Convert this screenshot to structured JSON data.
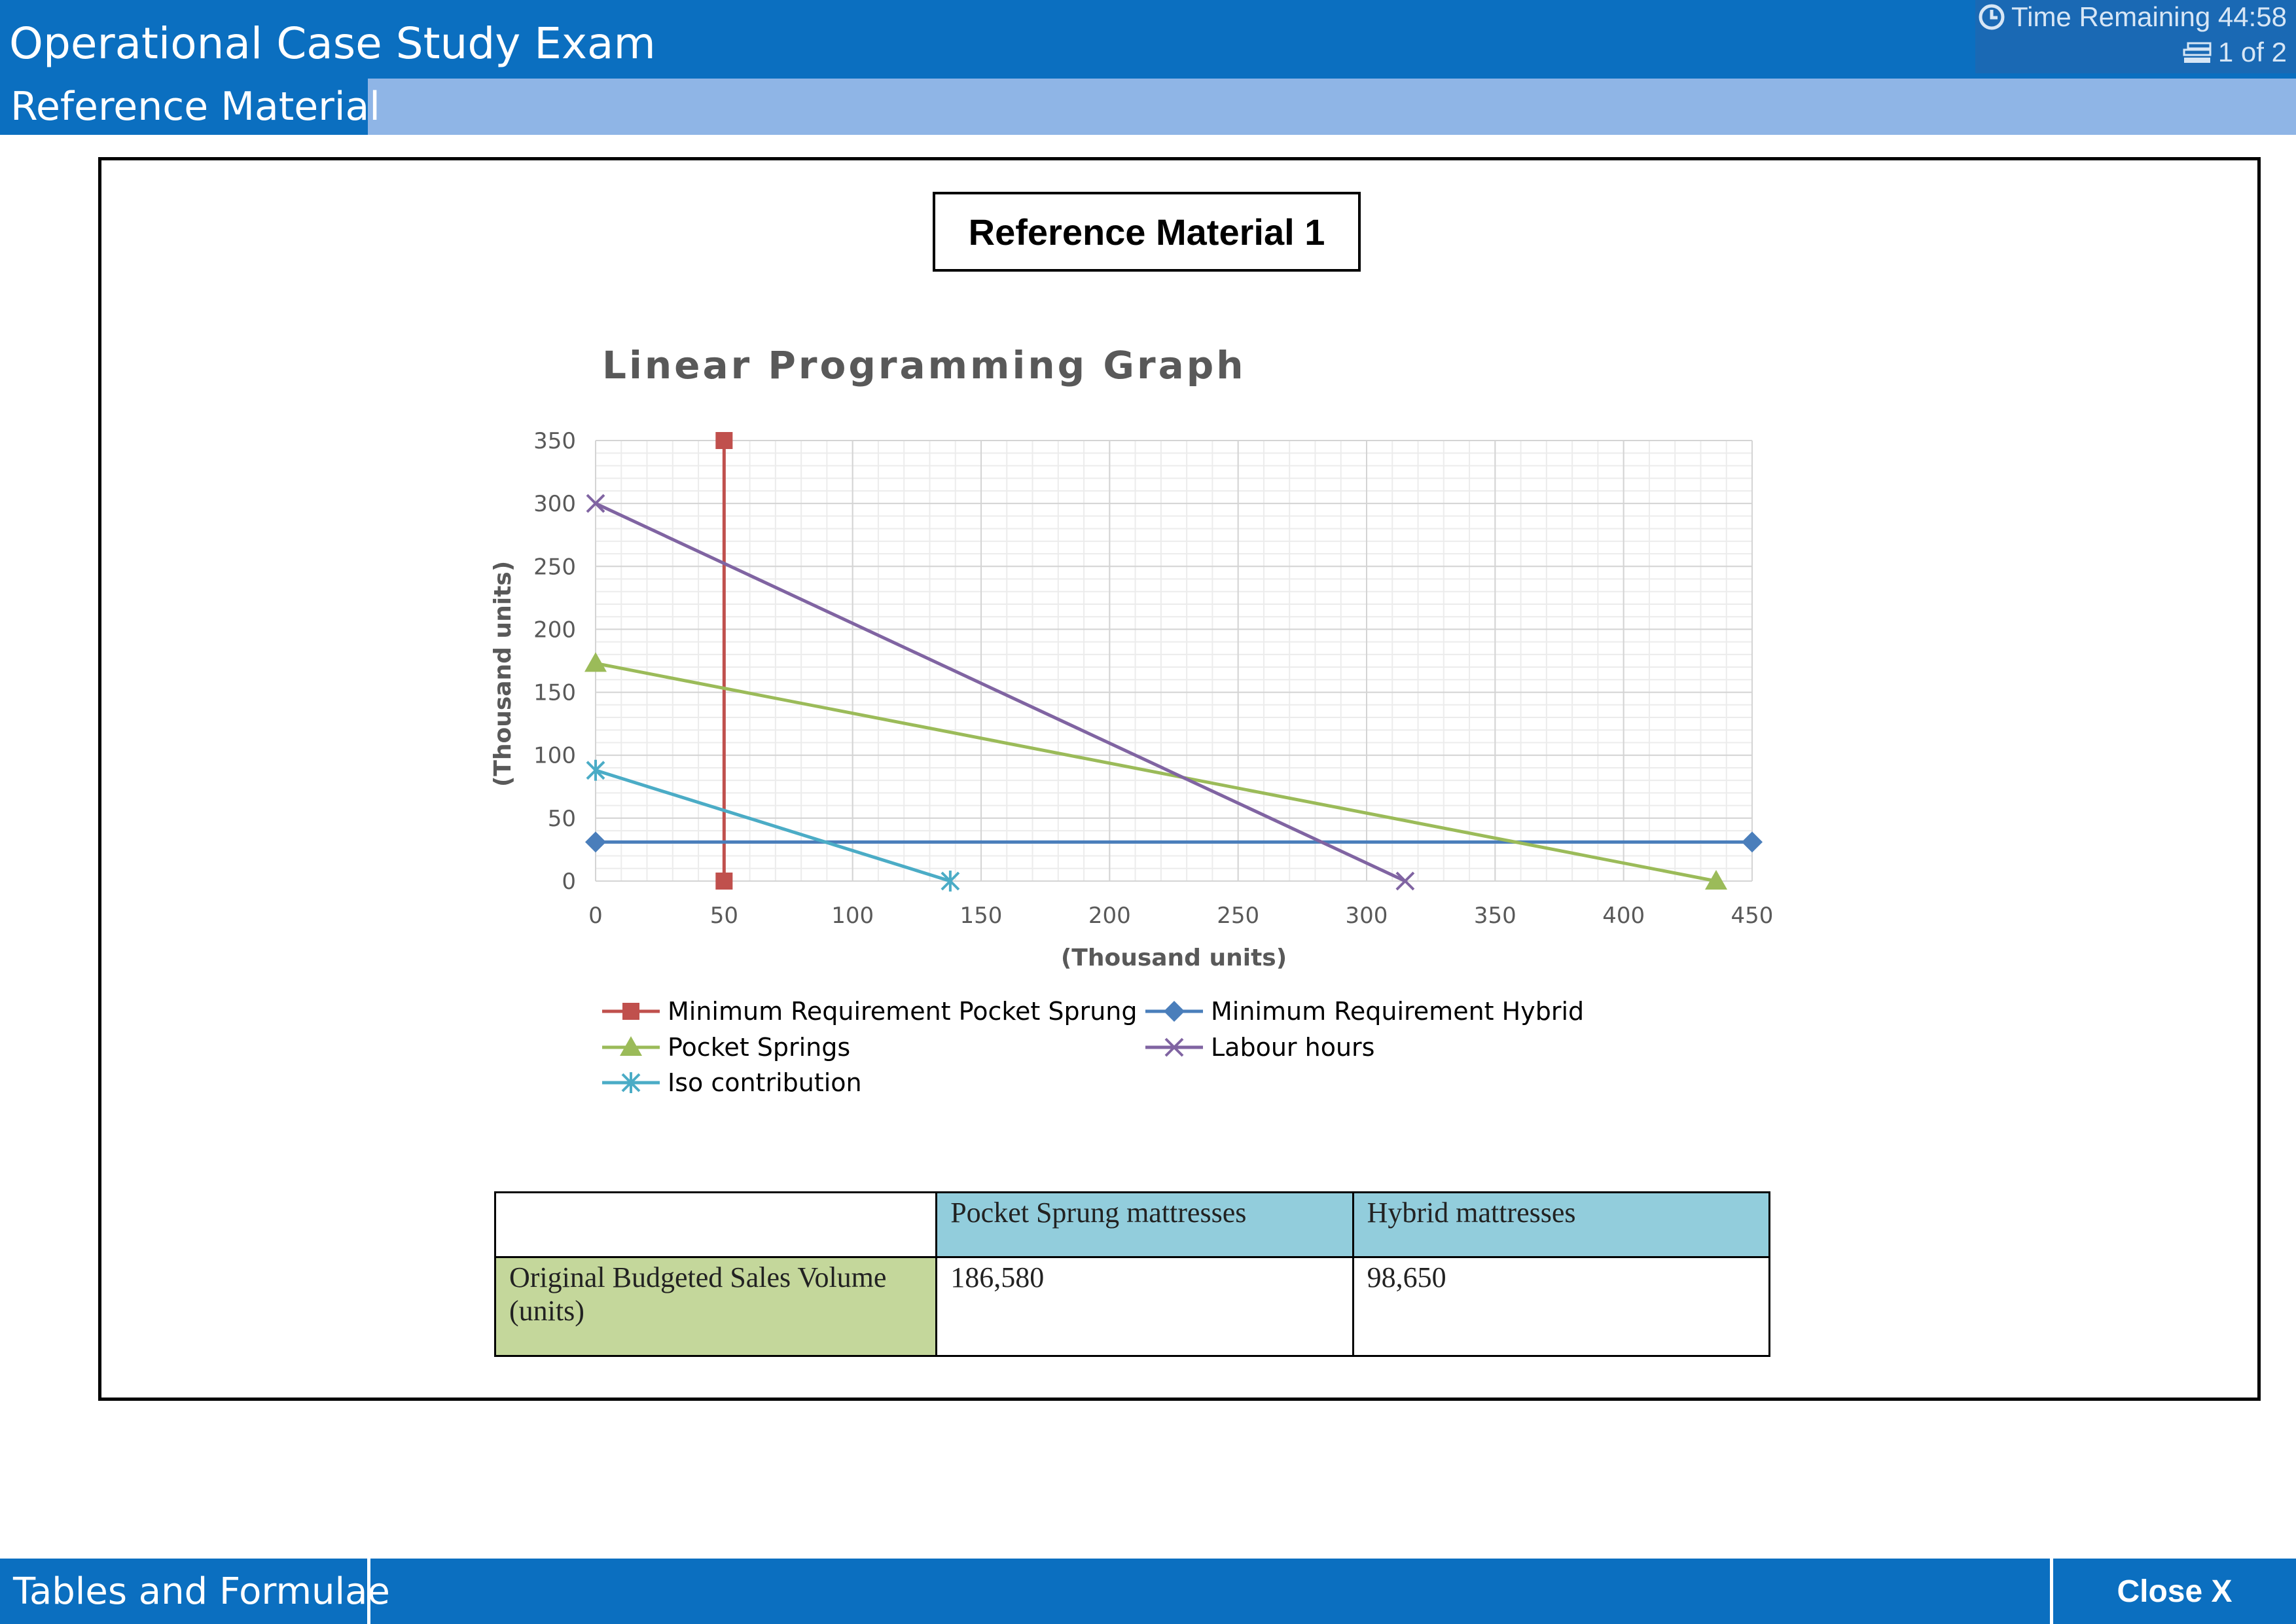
{
  "app": {
    "title": "Operational Case Study Exam",
    "time_remaining": "Time Remaining 44:58",
    "page_indicator": "1 of 2"
  },
  "subnav": {
    "active_tab": "Reference Material"
  },
  "reference": {
    "title": "Reference Material 1"
  },
  "chart_data": {
    "type": "line",
    "title": "Linear Programming Graph",
    "xlabel": "(Thousand units)",
    "ylabel": "(Thousand units)",
    "xlim": [
      0,
      450
    ],
    "ylim": [
      0,
      350
    ],
    "x_ticks": [
      0,
      50,
      100,
      150,
      200,
      250,
      300,
      350,
      400,
      450
    ],
    "y_ticks": [
      0,
      50,
      100,
      150,
      200,
      250,
      300,
      350
    ],
    "grid": true,
    "legend_position": "bottom",
    "series": [
      {
        "name": "Minimum Requirement Pocket Sprung",
        "color": "#c0504d",
        "marker": "square",
        "points": [
          [
            50,
            350
          ],
          [
            50,
            0
          ]
        ]
      },
      {
        "name": "Minimum Requirement Hybrid",
        "color": "#4a7ebb",
        "marker": "diamond",
        "points": [
          [
            0,
            31
          ],
          [
            450,
            31
          ]
        ]
      },
      {
        "name": "Pocket Springs",
        "color": "#9bbb59",
        "marker": "triangle",
        "points": [
          [
            0,
            173
          ],
          [
            436,
            0
          ]
        ]
      },
      {
        "name": "Labour hours",
        "color": "#8064a2",
        "marker": "x",
        "points": [
          [
            0,
            300
          ],
          [
            315,
            0
          ]
        ]
      },
      {
        "name": "Iso contribution",
        "color": "#4bacc6",
        "marker": "asterisk",
        "points": [
          [
            0,
            88
          ],
          [
            138,
            0
          ]
        ]
      }
    ]
  },
  "table": {
    "headers": [
      "Pocket Sprung mattresses",
      "Hybrid mattresses"
    ],
    "row_label": "Original Budgeted Sales Volume (units)",
    "values": [
      "186,580",
      "98,650"
    ]
  },
  "footer": {
    "tables_label": "Tables and Formulae",
    "close_label": "Close X"
  }
}
